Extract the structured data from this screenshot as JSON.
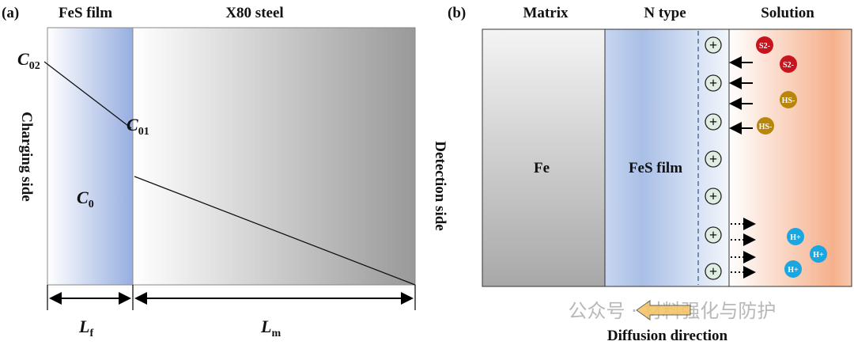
{
  "panel_a": {
    "label": "(a)",
    "film_title": "FeS film",
    "steel_title": "X80 steel",
    "left_side": "Charging side",
    "right_side": "Detection side",
    "c02": {
      "main": "C",
      "sub": "02"
    },
    "c01": {
      "main": "C",
      "sub": "01"
    },
    "c0": {
      "main": "C",
      "sub": "0"
    },
    "lf": {
      "main": "L",
      "sub": "f"
    },
    "lm": {
      "main": "L",
      "sub": "m"
    }
  },
  "panel_b": {
    "label": "(b)",
    "matrix_title": "Matrix",
    "ntype_title": "N type",
    "solution_title": "Solution",
    "fe_label": "Fe",
    "film_label": "FeS film",
    "plus_symbol": "+",
    "ions": {
      "s2": "S2-",
      "hs": "HS-",
      "h": "H+"
    },
    "diffusion_label": "Diffusion direction",
    "watermark": "公众号 · 材料强化与防护",
    "colors": {
      "s2": "#c8141c",
      "hs": "#b8860b",
      "h": "#1aa6e0",
      "solution": "#f4a882",
      "film": "#9fb4e0"
    }
  }
}
